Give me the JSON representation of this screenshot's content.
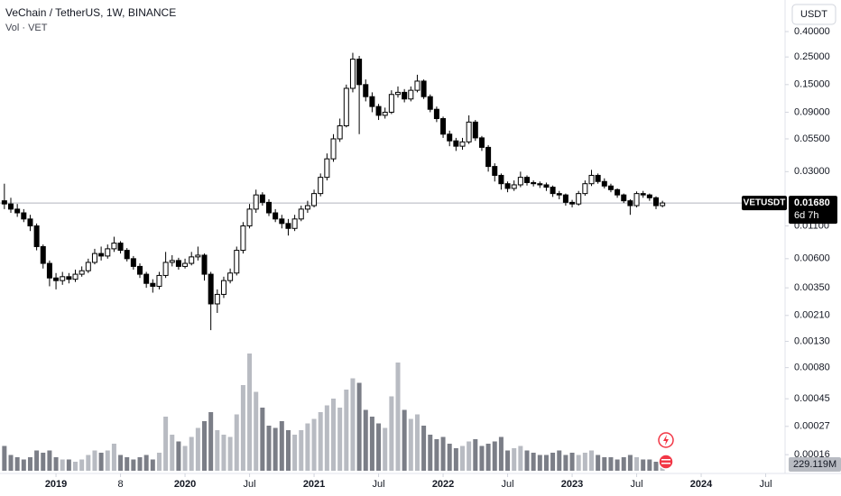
{
  "chart_data": {
    "type": "candlestick",
    "title": "VeChain / TetherUS, 1W, BINANCE",
    "volume_title": "Vol · VET",
    "currency": "USDT",
    "symbol": "VETUSDT",
    "last_price": 0.0168,
    "last_price_label": "0.01680",
    "countdown": "6d 7h",
    "last_volume_label": "229.119M",
    "log_scale": true,
    "grid": false,
    "up_color": "#ffffff",
    "down_color": "#000000",
    "volume_up_color": "#b8bbc2",
    "volume_down_color": "#7b7e87",
    "xlim": [
      2018.566,
      2024.65
    ],
    "xticks": [
      2019,
      {
        "value": 2019.5,
        "label": "8"
      },
      2020,
      {
        "value": 2020.5,
        "label": "Jul"
      },
      2021,
      {
        "value": 2021.5,
        "label": "Jul"
      },
      2022,
      {
        "value": 2022.5,
        "label": "Jul"
      },
      2023,
      {
        "value": 2023.5,
        "label": "Jul"
      },
      2024,
      {
        "value": 2024.5,
        "label": "Jul"
      }
    ],
    "ylim": [
      0.000104,
      0.717
    ],
    "yticks": [
      {
        "value": 0.4,
        "label": "0.40000"
      },
      {
        "value": 0.25,
        "label": "0.25000"
      },
      {
        "value": 0.15,
        "label": "0.15000"
      },
      {
        "value": 0.09,
        "label": "0.09000"
      },
      {
        "value": 0.055,
        "label": "0.05500"
      },
      {
        "value": 0.03,
        "label": "0.03000"
      },
      {
        "value": 0.011,
        "label": "0.01100"
      },
      {
        "value": 0.006,
        "label": "0.00600"
      },
      {
        "value": 0.0035,
        "label": "0.00350"
      },
      {
        "value": 0.0021,
        "label": "0.00210"
      },
      {
        "value": 0.0013,
        "label": "0.00130"
      },
      {
        "value": 0.0008,
        "label": "0.00080"
      },
      {
        "value": 0.00045,
        "label": "0.00045"
      },
      {
        "value": 0.00027,
        "label": "0.00027"
      },
      {
        "value": 0.00016,
        "label": "0.00016"
      }
    ],
    "y2lim": [
      0,
      6000
    ],
    "x": [
      2018.6,
      2018.65,
      2018.7,
      2018.75,
      2018.8,
      2018.85,
      2018.9,
      2018.95,
      2019.0,
      2019.05,
      2019.1,
      2019.15,
      2019.2,
      2019.25,
      2019.3,
      2019.35,
      2019.4,
      2019.45,
      2019.5,
      2019.55,
      2019.6,
      2019.65,
      2019.7,
      2019.75,
      2019.8,
      2019.85,
      2019.9,
      2019.95,
      2020.0,
      2020.05,
      2020.1,
      2020.15,
      2020.2,
      2020.25,
      2020.3,
      2020.35,
      2020.4,
      2020.45,
      2020.5,
      2020.55,
      2020.6,
      2020.65,
      2020.7,
      2020.75,
      2020.8,
      2020.85,
      2020.9,
      2020.95,
      2021.0,
      2021.05,
      2021.1,
      2021.15,
      2021.2,
      2021.25,
      2021.3,
      2021.35,
      2021.4,
      2021.45,
      2021.5,
      2021.55,
      2021.6,
      2021.65,
      2021.7,
      2021.75,
      2021.8,
      2021.85,
      2021.9,
      2021.95,
      2022.0,
      2022.05,
      2022.1,
      2022.15,
      2022.2,
      2022.25,
      2022.3,
      2022.35,
      2022.4,
      2022.45,
      2022.5,
      2022.55,
      2022.6,
      2022.65,
      2022.7,
      2022.75,
      2022.8,
      2022.85,
      2022.9,
      2022.95,
      2023.0,
      2023.05,
      2023.1,
      2023.15,
      2023.2,
      2023.25,
      2023.3,
      2023.35,
      2023.4,
      2023.45,
      2023.5,
      2023.55,
      2023.6,
      2023.65,
      2023.7
    ],
    "open": [
      0.0175,
      0.0165,
      0.015,
      0.014,
      0.0125,
      0.011,
      0.0075,
      0.0055,
      0.0042,
      0.004,
      0.0043,
      0.0041,
      0.0045,
      0.0048,
      0.0056,
      0.0066,
      0.0063,
      0.0072,
      0.008,
      0.007,
      0.006,
      0.0052,
      0.0045,
      0.0038,
      0.0036,
      0.0044,
      0.0056,
      0.0058,
      0.0052,
      0.0055,
      0.0062,
      0.0064,
      0.0045,
      0.0026,
      0.0031,
      0.004,
      0.0046,
      0.007,
      0.011,
      0.015,
      0.0195,
      0.017,
      0.014,
      0.0125,
      0.0115,
      0.0105,
      0.0125,
      0.015,
      0.016,
      0.02,
      0.027,
      0.038,
      0.055,
      0.07,
      0.14,
      0.24,
      0.15,
      0.12,
      0.1,
      0.085,
      0.09,
      0.125,
      0.13,
      0.115,
      0.135,
      0.16,
      0.12,
      0.095,
      0.08,
      0.06,
      0.053,
      0.048,
      0.052,
      0.075,
      0.056,
      0.047,
      0.033,
      0.028,
      0.024,
      0.022,
      0.0235,
      0.027,
      0.0245,
      0.024,
      0.0235,
      0.0225,
      0.02,
      0.0195,
      0.017,
      0.0165,
      0.02,
      0.024,
      0.028,
      0.025,
      0.023,
      0.0215,
      0.0195,
      0.0175,
      0.016,
      0.02,
      0.0195,
      0.0185,
      0.016
    ],
    "high": [
      0.024,
      0.0185,
      0.0165,
      0.015,
      0.0135,
      0.0115,
      0.0078,
      0.0058,
      0.0046,
      0.0047,
      0.0046,
      0.0049,
      0.0052,
      0.006,
      0.0072,
      0.0075,
      0.0078,
      0.009,
      0.0083,
      0.0073,
      0.0063,
      0.0055,
      0.0047,
      0.0041,
      0.0047,
      0.0068,
      0.0064,
      0.0061,
      0.006,
      0.0068,
      0.0075,
      0.0066,
      0.0047,
      0.0034,
      0.0043,
      0.005,
      0.0075,
      0.0118,
      0.0165,
      0.0215,
      0.0205,
      0.018,
      0.015,
      0.0135,
      0.0125,
      0.0135,
      0.016,
      0.0175,
      0.0215,
      0.029,
      0.042,
      0.06,
      0.08,
      0.15,
      0.27,
      0.255,
      0.165,
      0.13,
      0.105,
      0.098,
      0.135,
      0.145,
      0.138,
      0.145,
      0.18,
      0.165,
      0.125,
      0.1,
      0.083,
      0.064,
      0.056,
      0.056,
      0.085,
      0.078,
      0.058,
      0.049,
      0.035,
      0.029,
      0.025,
      0.0255,
      0.03,
      0.028,
      0.0255,
      0.025,
      0.0245,
      0.0232,
      0.021,
      0.02,
      0.0178,
      0.021,
      0.0255,
      0.031,
      0.029,
      0.0265,
      0.024,
      0.022,
      0.02,
      0.018,
      0.0208,
      0.021,
      0.02,
      0.019,
      0.0175
    ],
    "low": [
      0.015,
      0.014,
      0.013,
      0.0118,
      0.01,
      0.007,
      0.005,
      0.0036,
      0.0034,
      0.0037,
      0.0038,
      0.0039,
      0.0043,
      0.0046,
      0.0054,
      0.0058,
      0.006,
      0.0068,
      0.0066,
      0.0057,
      0.0049,
      0.0042,
      0.0035,
      0.0032,
      0.0034,
      0.0042,
      0.0052,
      0.0049,
      0.005,
      0.0053,
      0.0058,
      0.004,
      0.0016,
      0.0022,
      0.0029,
      0.0038,
      0.0044,
      0.0066,
      0.0105,
      0.014,
      0.016,
      0.0132,
      0.0118,
      0.0105,
      0.0092,
      0.01,
      0.012,
      0.014,
      0.0155,
      0.019,
      0.0255,
      0.036,
      0.052,
      0.068,
      0.13,
      0.06,
      0.11,
      0.09,
      0.078,
      0.08,
      0.087,
      0.118,
      0.108,
      0.11,
      0.13,
      0.115,
      0.09,
      0.075,
      0.056,
      0.048,
      0.044,
      0.045,
      0.05,
      0.053,
      0.044,
      0.03,
      0.025,
      0.0215,
      0.0205,
      0.021,
      0.0225,
      0.0232,
      0.0228,
      0.0222,
      0.021,
      0.0188,
      0.018,
      0.016,
      0.0155,
      0.016,
      0.0192,
      0.023,
      0.024,
      0.022,
      0.0205,
      0.0185,
      0.0168,
      0.0135,
      0.0155,
      0.0185,
      0.0175,
      0.015,
      0.0155
    ],
    "close": [
      0.0165,
      0.015,
      0.014,
      0.0125,
      0.011,
      0.0075,
      0.0055,
      0.0042,
      0.004,
      0.0043,
      0.0041,
      0.0045,
      0.0048,
      0.0056,
      0.0066,
      0.0063,
      0.0072,
      0.008,
      0.007,
      0.006,
      0.0052,
      0.0045,
      0.0038,
      0.0036,
      0.0044,
      0.0056,
      0.0058,
      0.0052,
      0.0055,
      0.0062,
      0.0064,
      0.0045,
      0.0026,
      0.0031,
      0.004,
      0.0046,
      0.007,
      0.011,
      0.015,
      0.0195,
      0.017,
      0.014,
      0.0125,
      0.0115,
      0.0105,
      0.0125,
      0.015,
      0.016,
      0.02,
      0.027,
      0.038,
      0.055,
      0.07,
      0.14,
      0.24,
      0.15,
      0.12,
      0.1,
      0.085,
      0.09,
      0.125,
      0.13,
      0.115,
      0.135,
      0.16,
      0.12,
      0.095,
      0.08,
      0.06,
      0.053,
      0.048,
      0.052,
      0.075,
      0.056,
      0.047,
      0.033,
      0.028,
      0.024,
      0.022,
      0.0235,
      0.027,
      0.0245,
      0.024,
      0.0235,
      0.0225,
      0.02,
      0.0195,
      0.017,
      0.0165,
      0.02,
      0.024,
      0.028,
      0.025,
      0.023,
      0.0215,
      0.0195,
      0.0175,
      0.016,
      0.02,
      0.0195,
      0.0185,
      0.016,
      0.0168
    ],
    "volume": [
      1100,
      700,
      600,
      500,
      600,
      900,
      800,
      900,
      600,
      500,
      500,
      400,
      500,
      700,
      900,
      800,
      900,
      1200,
      700,
      600,
      500,
      600,
      700,
      500,
      800,
      2400,
      1600,
      1300,
      1100,
      1500,
      1900,
      2200,
      2600,
      1800,
      1600,
      1500,
      2500,
      3800,
      5200,
      3500,
      2800,
      2000,
      1900,
      2200,
      1800,
      1600,
      1800,
      2100,
      2300,
      2600,
      2900,
      3200,
      2800,
      3600,
      4100,
      3900,
      2700,
      2400,
      2100,
      1900,
      3300,
      4800,
      2700,
      2300,
      2500,
      2000,
      1600,
      1400,
      1500,
      1200,
      1000,
      1100,
      1300,
      1400,
      1100,
      1200,
      1300,
      1500,
      900,
      1000,
      1100,
      900,
      800,
      700,
      700,
      800,
      900,
      700,
      800,
      700,
      800,
      900,
      700,
      600,
      600,
      500,
      600,
      700,
      600,
      500,
      500,
      400,
      229.119
    ]
  }
}
